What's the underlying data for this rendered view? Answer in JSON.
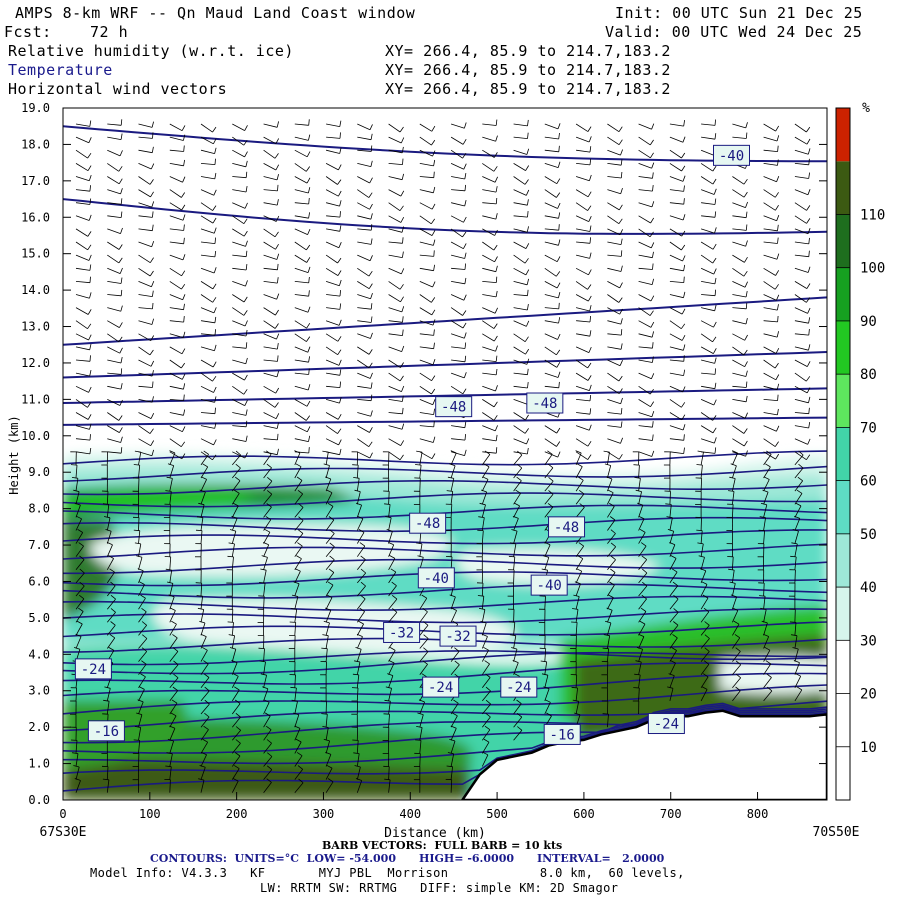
{
  "header": {
    "title": "AMPS 8-km WRF -- Qn Maud Land Coast window",
    "init": "Init: 00 UTC Sun 21 Dec 25",
    "fcst_label": "Fcst:",
    "fcst_value": "72 h",
    "valid": "Valid: 00 UTC Wed 24 Dec 25",
    "field1": "Relative humidity (w.r.t. ice)",
    "field2": "Temperature",
    "field3": "Horizontal wind vectors",
    "xy": "XY= 266.4, 85.9 to 214.7,183.2"
  },
  "chart_data": {
    "type": "heatmap",
    "ylabel": "Height (km)",
    "xlabel": "Distance (km)",
    "xlim": [
      0,
      880
    ],
    "ylim": [
      0,
      19
    ],
    "x_ticks": [
      0,
      100,
      200,
      300,
      400,
      500,
      600,
      700,
      800
    ],
    "y_ticks": [
      "0.0",
      "1.0",
      "2.0",
      "3.0",
      "4.0",
      "5.0",
      "6.0",
      "7.0",
      "8.0",
      "9.0",
      "10.0",
      "11.0",
      "12.0",
      "13.0",
      "14.0",
      "15.0",
      "16.0",
      "17.0",
      "18.0",
      "19.0"
    ],
    "left_endpoint": "67S30E",
    "right_endpoint": "70S50E",
    "colorbar": {
      "unit": "%",
      "levels": [
        10,
        20,
        30,
        40,
        50,
        60,
        70,
        80,
        90,
        100,
        110
      ],
      "colors": [
        "#ffffff",
        "#ffffff",
        "#ffffff",
        "#d6f5ec",
        "#9ee8d8",
        "#5edcc4",
        "#42d4a8",
        "#5ee65e",
        "#22c822",
        "#16a020",
        "#1e6e1e",
        "#3c5a12",
        "#cc2200"
      ]
    },
    "contour_labels": [
      {
        "text": "-40",
        "x": 770,
        "y": 17.7
      },
      {
        "text": "-48",
        "x": 450,
        "y": 10.8
      },
      {
        "text": "-48",
        "x": 555,
        "y": 10.9
      },
      {
        "text": "-48",
        "x": 420,
        "y": 7.6
      },
      {
        "text": "-48",
        "x": 580,
        "y": 7.5
      },
      {
        "text": "-40",
        "x": 430,
        "y": 6.1
      },
      {
        "text": "-40",
        "x": 560,
        "y": 5.9
      },
      {
        "text": "-32",
        "x": 390,
        "y": 4.6
      },
      {
        "text": "-32",
        "x": 455,
        "y": 4.5
      },
      {
        "text": "-24",
        "x": 35,
        "y": 3.6
      },
      {
        "text": "-24",
        "x": 435,
        "y": 3.1
      },
      {
        "text": "-24",
        "x": 525,
        "y": 3.1
      },
      {
        "text": "-16",
        "x": 50,
        "y": 1.9
      },
      {
        "text": "-16",
        "x": 575,
        "y": 1.8
      },
      {
        "text": "-24",
        "x": 695,
        "y": 2.1
      }
    ],
    "terrain": {
      "x": [
        460,
        480,
        500,
        520,
        540,
        560,
        580,
        600,
        620,
        640,
        660,
        680,
        700,
        720,
        740,
        760,
        780,
        800,
        820,
        840,
        860,
        880
      ],
      "height_km": [
        0,
        0.7,
        1.1,
        1.2,
        1.3,
        1.5,
        1.6,
        1.65,
        1.8,
        1.9,
        2.0,
        2.2,
        2.3,
        2.3,
        2.4,
        2.45,
        2.3,
        2.3,
        2.3,
        2.3,
        2.3,
        2.35
      ]
    }
  },
  "footer": {
    "barb": "BARB VECTORS:  FULL BARB = 10 kts",
    "contours": "CONTOURS:  UNITS=°C  LOW= -54.000      HIGH= -6.0000      INTERVAL=   2.0000",
    "model1": "Model Info: V4.3.3   KF       MYJ PBL  Morrison            8.0 km,  60 levels,",
    "model2": "LW: RRTM SW: RRTMG   DIFF: simple KM: 2D Smagor"
  }
}
